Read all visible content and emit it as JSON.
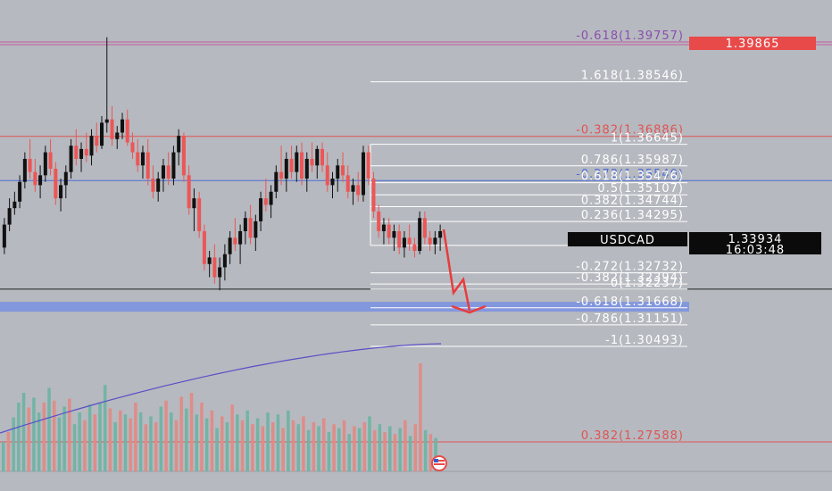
{
  "chart_data": {
    "type": "candlestick",
    "symbol": "USDCAD",
    "price_scale": {
      "min": 1.268,
      "max": 1.403
    },
    "current_price": {
      "symbol": "USDCAD",
      "value": "1.33934",
      "countdown": "16:03:48",
      "price": 1.33934
    },
    "top_price_tag": {
      "text": "1.39865",
      "price": 1.39757
    },
    "fib_levels": [
      {
        "ratio": "-0.618",
        "price": 1.39757,
        "label": "-0.618(1.39757)",
        "color": "#8a4fb0",
        "line_color": "#c05aa0"
      },
      {
        "ratio": "1.618",
        "price": 1.38546,
        "label": "1.618(1.38546)",
        "color": "#ffffff",
        "line_color": "#ffffff"
      },
      {
        "ratio": "-0.382",
        "price": 1.36886,
        "label": "-0.382(1.36886)",
        "color": "#e05454",
        "line_color": "#e05454"
      },
      {
        "ratio": "1",
        "price": 1.36645,
        "label": "1(1.36645)",
        "color": "#ffffff",
        "line_color": "#ffffff"
      },
      {
        "ratio": "0.786",
        "price": 1.35987,
        "label": "0.786(1.35987)",
        "color": "#ffffff",
        "line_color": "#ffffff"
      },
      {
        "ratio": "-0.272",
        "price": 1.3554,
        "label": "-0.272(1.35540)",
        "color": "#4c6ed8",
        "line_color": "#4c6ed8"
      },
      {
        "ratio": "0.618",
        "price": 1.35476,
        "label": "0.618(1.35476)",
        "color": "#ffffff",
        "line_color": "#ffffff"
      },
      {
        "ratio": "0.5",
        "price": 1.35107,
        "label": "0.5(1.35107)",
        "color": "#ffffff",
        "line_color": "#ffffff"
      },
      {
        "ratio": "0.382",
        "price": 1.34744,
        "label": "0.382(1.34744)",
        "color": "#ffffff",
        "line_color": "#ffffff"
      },
      {
        "ratio": "0.236",
        "price": 1.34295,
        "label": "0.236(1.34295)",
        "color": "#ffffff",
        "line_color": "#ffffff"
      },
      {
        "ratio": "0",
        "price": 1.33566,
        "label": "0(1.33566)",
        "color": "#ffffff",
        "line_color": "#ffffff"
      },
      {
        "ratio": "-0.272",
        "price": 1.32732,
        "label": "-0.272(1.32732)",
        "color": "#ffffff",
        "line_color": "#ffffff"
      },
      {
        "ratio": "-0.382",
        "price": 1.32394,
        "label": "-0.382(1.32394)",
        "color": "#ffffff",
        "line_color": "#ffffff"
      },
      {
        "ratio": "0",
        "price": 1.32237,
        "label": "0(1.32237)",
        "color": "#ffffff",
        "line_color": "#ffffff"
      },
      {
        "ratio": "-0.618",
        "price": 1.31668,
        "label": "-0.618(1.31668)",
        "color": "#ffffff",
        "line_color": "#ffffff"
      },
      {
        "ratio": "-0.786",
        "price": 1.31151,
        "label": "-0.786(1.31151)",
        "color": "#ffffff",
        "line_color": "#ffffff"
      },
      {
        "ratio": "-1",
        "price": 1.30493,
        "label": "-1(1.30493)",
        "color": "#ffffff",
        "line_color": "#ffffff"
      },
      {
        "ratio": "0.382",
        "price": 1.27588,
        "label": "0.382(1.27588)",
        "color": "#e05454",
        "line_color": "#e05454"
      }
    ],
    "horizontal_lines": [
      {
        "price": 1.36886,
        "color": "#e05454"
      },
      {
        "price": 1.3554,
        "color": "#4c6ed8"
      },
      {
        "price": 1.32237,
        "color": "#222222"
      },
      {
        "price": 1.27588,
        "color": "#e05454"
      }
    ],
    "support_zone": {
      "from": 1.3155,
      "to": 1.3185,
      "color": "#7d93e0"
    },
    "candles": [
      [
        1.335,
        1.344,
        1.333,
        1.342
      ],
      [
        1.342,
        1.35,
        1.34,
        1.347
      ],
      [
        1.347,
        1.352,
        1.345,
        1.349
      ],
      [
        1.349,
        1.357,
        1.347,
        1.355
      ],
      [
        1.355,
        1.364,
        1.353,
        1.362
      ],
      [
        1.362,
        1.368,
        1.356,
        1.358
      ],
      [
        1.358,
        1.362,
        1.352,
        1.354
      ],
      [
        1.354,
        1.36,
        1.35,
        1.357
      ],
      [
        1.357,
        1.366,
        1.355,
        1.364
      ],
      [
        1.364,
        1.368,
        1.357,
        1.359
      ],
      [
        1.359,
        1.361,
        1.348,
        1.35
      ],
      [
        1.35,
        1.356,
        1.346,
        1.354
      ],
      [
        1.354,
        1.36,
        1.35,
        1.358
      ],
      [
        1.358,
        1.368,
        1.356,
        1.366
      ],
      [
        1.366,
        1.371,
        1.36,
        1.362
      ],
      [
        1.362,
        1.367,
        1.358,
        1.365
      ],
      [
        1.365,
        1.37,
        1.361,
        1.363
      ],
      [
        1.363,
        1.371,
        1.36,
        1.369
      ],
      [
        1.369,
        1.373,
        1.364,
        1.366
      ],
      [
        1.366,
        1.375,
        1.365,
        1.373
      ],
      [
        1.373,
        1.399,
        1.37,
        1.374
      ],
      [
        1.374,
        1.378,
        1.366,
        1.368
      ],
      [
        1.368,
        1.372,
        1.365,
        1.37
      ],
      [
        1.37,
        1.376,
        1.368,
        1.374
      ],
      [
        1.374,
        1.377,
        1.366,
        1.367
      ],
      [
        1.367,
        1.37,
        1.362,
        1.364
      ],
      [
        1.364,
        1.368,
        1.358,
        1.36
      ],
      [
        1.36,
        1.366,
        1.356,
        1.364
      ],
      [
        1.364,
        1.368,
        1.354,
        1.356
      ],
      [
        1.356,
        1.36,
        1.35,
        1.352
      ],
      [
        1.352,
        1.358,
        1.349,
        1.356
      ],
      [
        1.356,
        1.362,
        1.352,
        1.36
      ],
      [
        1.36,
        1.364,
        1.354,
        1.356
      ],
      [
        1.356,
        1.366,
        1.354,
        1.364
      ],
      [
        1.364,
        1.371,
        1.36,
        1.369
      ],
      [
        1.369,
        1.37,
        1.355,
        1.357
      ],
      [
        1.357,
        1.36,
        1.345,
        1.347
      ],
      [
        1.347,
        1.353,
        1.34,
        1.35
      ],
      [
        1.35,
        1.352,
        1.338,
        1.34
      ],
      [
        1.34,
        1.342,
        1.328,
        1.33
      ],
      [
        1.33,
        1.334,
        1.326,
        1.332
      ],
      [
        1.332,
        1.336,
        1.324,
        1.326
      ],
      [
        1.326,
        1.332,
        1.322,
        1.329
      ],
      [
        1.329,
        1.336,
        1.325,
        1.333
      ],
      [
        1.333,
        1.34,
        1.33,
        1.338
      ],
      [
        1.338,
        1.344,
        1.334,
        1.336
      ],
      [
        1.336,
        1.342,
        1.33,
        1.34
      ],
      [
        1.34,
        1.346,
        1.336,
        1.344
      ],
      [
        1.344,
        1.348,
        1.336,
        1.338
      ],
      [
        1.338,
        1.345,
        1.334,
        1.343
      ],
      [
        1.343,
        1.352,
        1.34,
        1.35
      ],
      [
        1.35,
        1.356,
        1.346,
        1.348
      ],
      [
        1.348,
        1.354,
        1.344,
        1.352
      ],
      [
        1.352,
        1.36,
        1.35,
        1.358
      ],
      [
        1.358,
        1.366,
        1.354,
        1.356
      ],
      [
        1.356,
        1.364,
        1.352,
        1.362
      ],
      [
        1.362,
        1.366,
        1.356,
        1.358
      ],
      [
        1.358,
        1.366,
        1.355,
        1.364
      ],
      [
        1.364,
        1.367,
        1.354,
        1.356
      ],
      [
        1.356,
        1.364,
        1.352,
        1.362
      ],
      [
        1.362,
        1.367,
        1.358,
        1.36
      ],
      [
        1.36,
        1.366,
        1.356,
        1.365
      ],
      [
        1.365,
        1.367,
        1.358,
        1.36
      ],
      [
        1.36,
        1.364,
        1.352,
        1.354
      ],
      [
        1.354,
        1.358,
        1.35,
        1.356
      ],
      [
        1.356,
        1.362,
        1.352,
        1.36
      ],
      [
        1.36,
        1.364,
        1.355,
        1.357
      ],
      [
        1.357,
        1.36,
        1.35,
        1.352
      ],
      [
        1.352,
        1.356,
        1.348,
        1.354
      ],
      [
        1.354,
        1.358,
        1.349,
        1.351
      ],
      [
        1.351,
        1.366,
        1.349,
        1.364
      ],
      [
        1.364,
        1.366,
        1.354,
        1.356
      ],
      [
        1.356,
        1.358,
        1.344,
        1.346
      ],
      [
        1.346,
        1.348,
        1.338,
        1.34
      ],
      [
        1.34,
        1.344,
        1.336,
        1.342
      ],
      [
        1.342,
        1.344,
        1.336,
        1.338
      ],
      [
        1.338,
        1.342,
        1.334,
        1.34
      ],
      [
        1.34,
        1.342,
        1.333,
        1.335
      ],
      [
        1.335,
        1.34,
        1.332,
        1.338
      ],
      [
        1.338,
        1.342,
        1.334,
        1.336
      ],
      [
        1.336,
        1.338,
        1.332,
        1.334
      ],
      [
        1.334,
        1.346,
        1.333,
        1.344
      ],
      [
        1.344,
        1.346,
        1.336,
        1.338
      ],
      [
        1.338,
        1.34,
        1.334,
        1.336
      ],
      [
        1.336,
        1.34,
        1.333,
        1.338
      ],
      [
        1.338,
        1.342,
        1.334,
        1.34
      ]
    ],
    "volume": [
      [
        30,
        "up"
      ],
      [
        40,
        "down"
      ],
      [
        55,
        "up"
      ],
      [
        70,
        "up"
      ],
      [
        80,
        "up"
      ],
      [
        65,
        "down"
      ],
      [
        75,
        "up"
      ],
      [
        60,
        "up"
      ],
      [
        70,
        "down"
      ],
      [
        85,
        "up"
      ],
      [
        72,
        "down"
      ],
      [
        55,
        "up"
      ],
      [
        66,
        "up"
      ],
      [
        74,
        "down"
      ],
      [
        48,
        "up"
      ],
      [
        60,
        "up"
      ],
      [
        52,
        "down"
      ],
      [
        68,
        "up"
      ],
      [
        58,
        "down"
      ],
      [
        70,
        "up"
      ],
      [
        88,
        "up"
      ],
      [
        64,
        "down"
      ],
      [
        50,
        "up"
      ],
      [
        62,
        "down"
      ],
      [
        58,
        "up"
      ],
      [
        54,
        "down"
      ],
      [
        70,
        "down"
      ],
      [
        60,
        "up"
      ],
      [
        48,
        "down"
      ],
      [
        56,
        "up"
      ],
      [
        50,
        "down"
      ],
      [
        66,
        "up"
      ],
      [
        72,
        "down"
      ],
      [
        60,
        "up"
      ],
      [
        52,
        "down"
      ],
      [
        76,
        "down"
      ],
      [
        64,
        "up"
      ],
      [
        80,
        "down"
      ],
      [
        58,
        "up"
      ],
      [
        70,
        "down"
      ],
      [
        54,
        "up"
      ],
      [
        62,
        "down"
      ],
      [
        44,
        "up"
      ],
      [
        56,
        "down"
      ],
      [
        50,
        "up"
      ],
      [
        68,
        "down"
      ],
      [
        58,
        "up"
      ],
      [
        52,
        "down"
      ],
      [
        62,
        "up"
      ],
      [
        48,
        "down"
      ],
      [
        54,
        "up"
      ],
      [
        46,
        "down"
      ],
      [
        60,
        "up"
      ],
      [
        50,
        "down"
      ],
      [
        58,
        "up"
      ],
      [
        44,
        "down"
      ],
      [
        62,
        "up"
      ],
      [
        52,
        "down"
      ],
      [
        48,
        "up"
      ],
      [
        56,
        "down"
      ],
      [
        42,
        "up"
      ],
      [
        50,
        "down"
      ],
      [
        46,
        "up"
      ],
      [
        54,
        "down"
      ],
      [
        40,
        "up"
      ],
      [
        48,
        "down"
      ],
      [
        44,
        "up"
      ],
      [
        52,
        "down"
      ],
      [
        38,
        "up"
      ],
      [
        46,
        "down"
      ],
      [
        44,
        "up"
      ],
      [
        50,
        "down"
      ],
      [
        56,
        "up"
      ],
      [
        42,
        "down"
      ],
      [
        48,
        "up"
      ],
      [
        40,
        "down"
      ],
      [
        46,
        "up"
      ],
      [
        38,
        "down"
      ],
      [
        44,
        "up"
      ],
      [
        52,
        "down"
      ],
      [
        36,
        "up"
      ],
      [
        48,
        "down"
      ],
      [
        110,
        "down"
      ],
      [
        42,
        "up"
      ],
      [
        38,
        "down"
      ],
      [
        34,
        "up"
      ]
    ],
    "moving_average_color": "#5a4fc8",
    "projection_arrow_color": "#e83c3c"
  }
}
